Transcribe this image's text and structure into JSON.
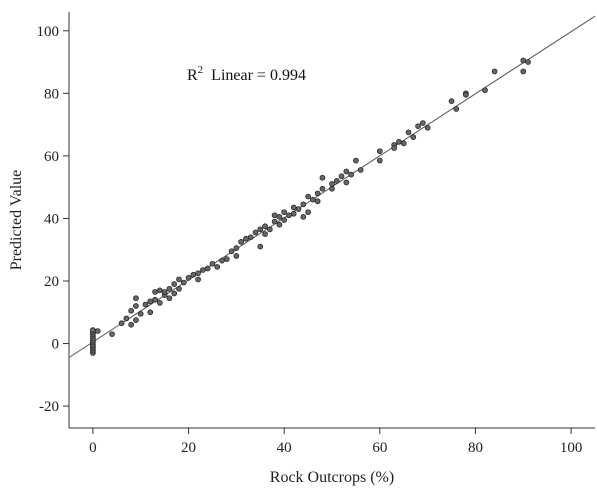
{
  "chart_data": {
    "type": "scatter",
    "xlabel": "Rock Outcrops (%)",
    "ylabel": "Predicted Value",
    "xlim": [
      -5,
      105
    ],
    "ylim": [
      -27,
      106
    ],
    "x_ticks": [
      0,
      20,
      40,
      60,
      80,
      100
    ],
    "y_ticks": [
      -20,
      0,
      20,
      40,
      60,
      80,
      100
    ],
    "x_tick_labels": [
      "0",
      "20",
      "40",
      "60",
      "80",
      "100"
    ],
    "y_tick_labels": [
      "-20",
      "0",
      "20",
      "40",
      "60",
      "80",
      "100"
    ],
    "grid": false,
    "annotation": {
      "prefix": "R",
      "superscript": "2",
      "text": "Linear = 0.994"
    },
    "fit_line": {
      "slope": 0.992,
      "intercept": 0.5,
      "x_range": [
        -5,
        105
      ]
    },
    "colors": {
      "point_fill": "#666666",
      "point_stroke": "#222222",
      "line": "#555555"
    },
    "points": [
      [
        0,
        -3
      ],
      [
        0,
        -2.3
      ],
      [
        0,
        -1.6
      ],
      [
        0,
        -1
      ],
      [
        0,
        -0.4
      ],
      [
        0,
        0.3
      ],
      [
        0,
        0.9
      ],
      [
        0,
        1.6
      ],
      [
        0,
        2.3
      ],
      [
        0,
        3
      ],
      [
        0,
        3.7
      ],
      [
        0,
        4.3
      ],
      [
        1,
        4
      ],
      [
        4,
        3
      ],
      [
        6,
        6.5
      ],
      [
        7,
        8
      ],
      [
        8,
        6
      ],
      [
        8,
        10.5
      ],
      [
        9,
        12
      ],
      [
        9,
        14.5
      ],
      [
        9,
        7.5
      ],
      [
        10,
        9.5
      ],
      [
        11,
        12.5
      ],
      [
        12,
        13.5
      ],
      [
        12,
        10
      ],
      [
        13,
        14
      ],
      [
        13,
        16.5
      ],
      [
        14,
        13
      ],
      [
        14,
        17
      ],
      [
        15,
        15.5
      ],
      [
        15,
        16.5
      ],
      [
        16,
        14.5
      ],
      [
        16,
        17.5
      ],
      [
        17,
        16
      ],
      [
        17,
        19
      ],
      [
        18,
        17.5
      ],
      [
        18,
        20.5
      ],
      [
        19,
        19.5
      ],
      [
        20,
        21
      ],
      [
        21,
        22
      ],
      [
        22,
        22.5
      ],
      [
        22,
        20.5
      ],
      [
        23,
        23.5
      ],
      [
        24,
        24
      ],
      [
        25,
        25.5
      ],
      [
        26,
        24.5
      ],
      [
        27,
        26.5
      ],
      [
        28,
        27
      ],
      [
        29,
        29.5
      ],
      [
        30,
        30.5
      ],
      [
        30,
        28
      ],
      [
        31,
        32.5
      ],
      [
        32,
        33.5
      ],
      [
        33,
        34
      ],
      [
        34,
        35.5
      ],
      [
        35,
        31
      ],
      [
        35,
        36.5
      ],
      [
        36,
        35
      ],
      [
        36,
        37.5
      ],
      [
        37,
        36.5
      ],
      [
        38,
        39
      ],
      [
        38,
        41
      ],
      [
        39,
        40.5
      ],
      [
        39,
        38
      ],
      [
        40,
        39.5
      ],
      [
        40,
        42
      ],
      [
        41,
        41
      ],
      [
        42,
        43.5
      ],
      [
        42,
        41.5
      ],
      [
        43,
        43
      ],
      [
        44,
        40.5
      ],
      [
        44,
        44.5
      ],
      [
        45,
        42
      ],
      [
        45,
        47
      ],
      [
        46,
        46
      ],
      [
        47,
        48
      ],
      [
        47,
        45.5
      ],
      [
        48,
        49.5
      ],
      [
        48,
        53
      ],
      [
        50,
        49.5
      ],
      [
        50,
        51
      ],
      [
        51,
        52
      ],
      [
        52,
        53.5
      ],
      [
        53,
        55
      ],
      [
        53,
        51.5
      ],
      [
        54,
        54
      ],
      [
        55,
        58.5
      ],
      [
        56,
        55.5
      ],
      [
        60,
        58.5
      ],
      [
        60,
        61.5
      ],
      [
        63,
        63.5
      ],
      [
        63,
        62.5
      ],
      [
        64,
        64.5
      ],
      [
        65,
        64
      ],
      [
        66,
        67.5
      ],
      [
        67,
        66
      ],
      [
        68,
        69.5
      ],
      [
        69,
        70.5
      ],
      [
        70,
        69
      ],
      [
        75,
        77.5
      ],
      [
        76,
        75
      ],
      [
        78,
        80
      ],
      [
        78,
        79.5
      ],
      [
        82,
        81
      ],
      [
        84,
        87
      ],
      [
        90,
        90.5
      ],
      [
        90,
        87
      ],
      [
        91,
        90
      ]
    ]
  }
}
